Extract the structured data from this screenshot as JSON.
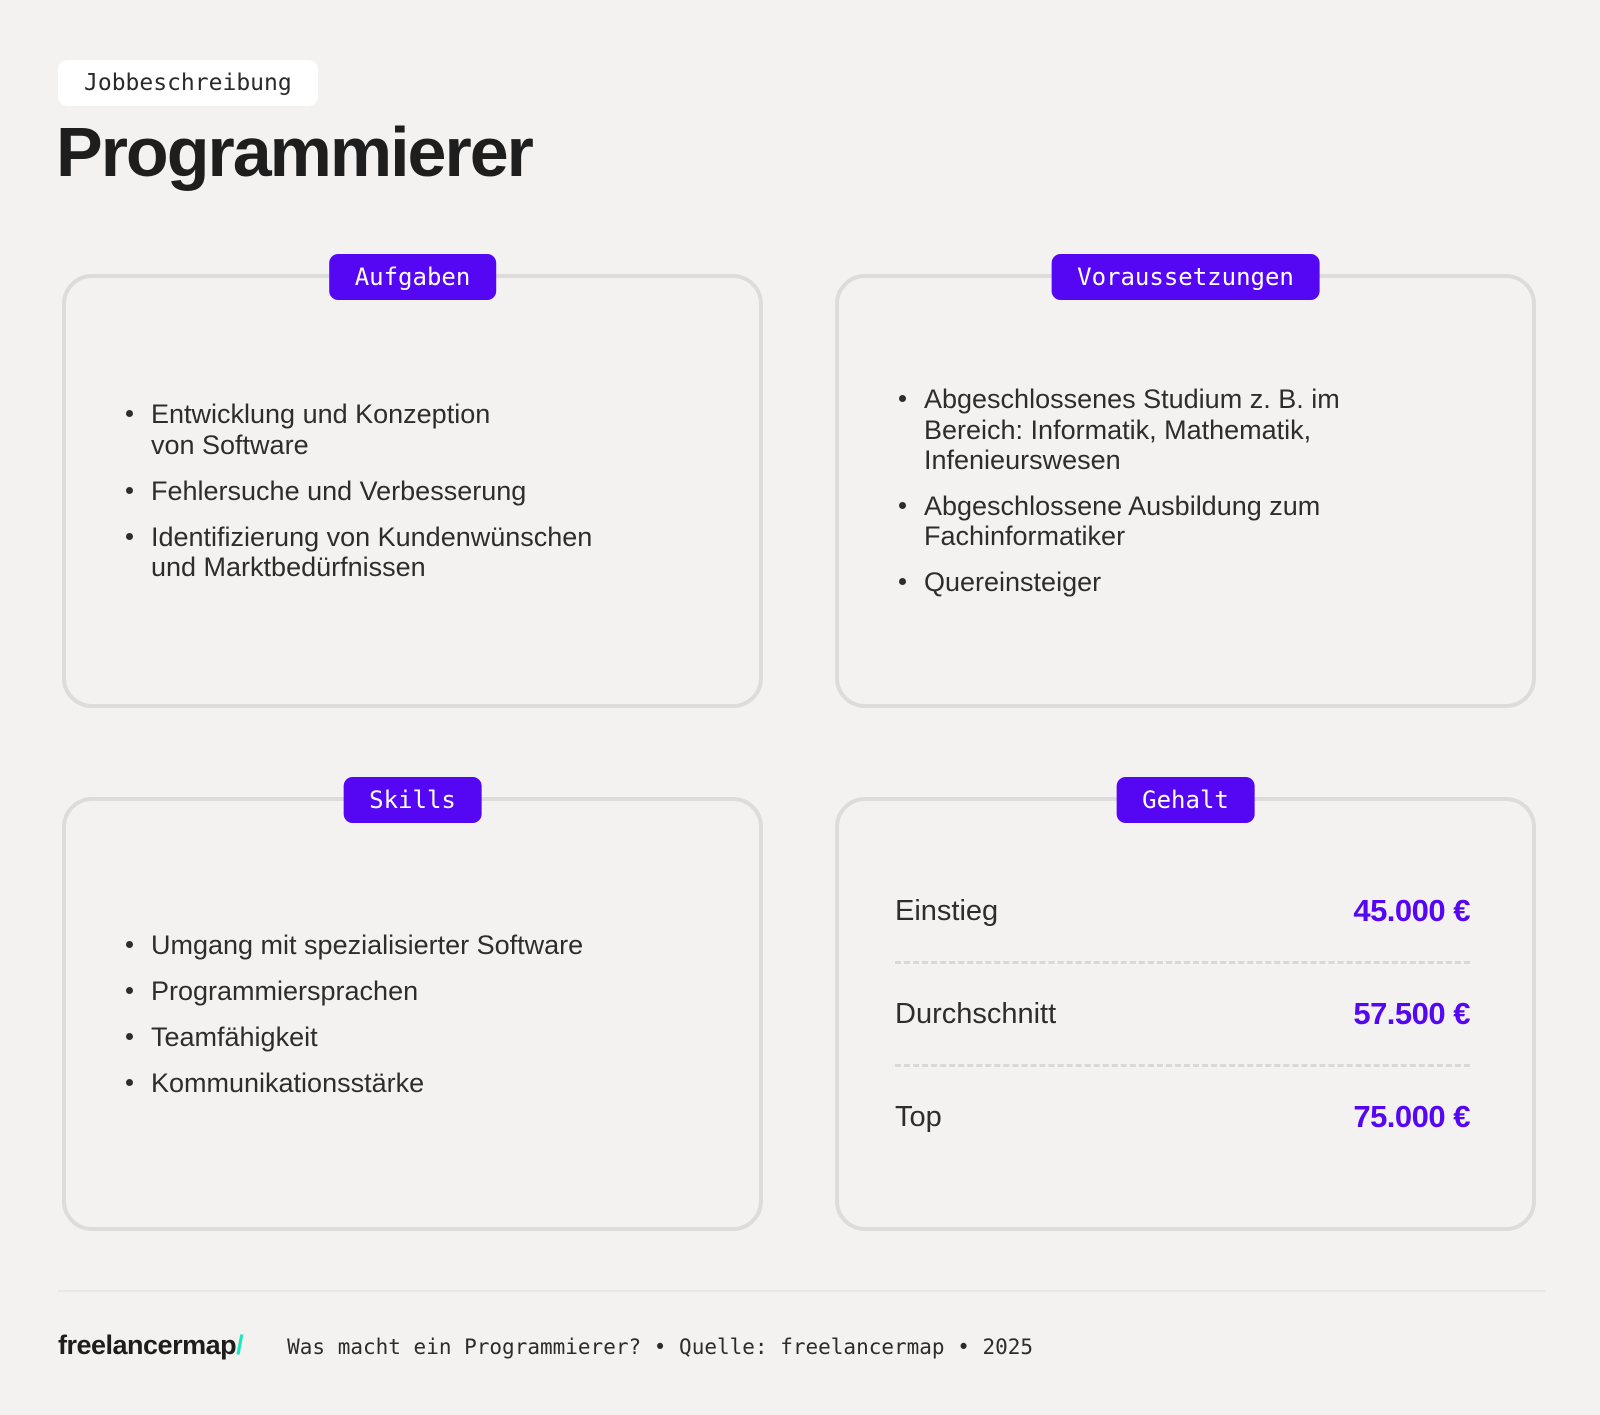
{
  "colors": {
    "accent": "#5506f2",
    "teal": "#1fe5c0",
    "page_bg": "#f3f2f1",
    "card_border": "#dcdcdc",
    "text": "#2d2d2d"
  },
  "header": {
    "tag": "Jobbeschreibung",
    "title": "Programmierer"
  },
  "cards": [
    {
      "badge": "Aufgaben",
      "items": [
        "Entwicklung und Konzeption\nvon Software",
        "Fehlersuche und Verbesserung",
        "Identifizierung von Kundenwünschen\nund Marktbedürfnissen"
      ]
    },
    {
      "badge": "Voraussetzungen",
      "items": [
        "Abgeschlossenes Studium z. B. im\nBereich: Informatik, Mathematik,\nInfenieurswesen",
        "Abgeschlossene Ausbildung zum\nFachinformatiker",
        "Quereinsteiger"
      ]
    },
    {
      "badge": "Skills",
      "items": [
        "Umgang mit spezialisierter Software",
        "Programmiersprachen",
        "Teamfähigkeit",
        "Kommunikationsstärke"
      ]
    }
  ],
  "salary": {
    "badge": "Gehalt",
    "rows": [
      {
        "label": "Einstieg",
        "value": "45.000 €"
      },
      {
        "label": "Durchschnitt",
        "value": "57.500 €"
      },
      {
        "label": "Top",
        "value": "75.000 €"
      }
    ]
  },
  "footer": {
    "logo": "freelancermap",
    "slash": "/",
    "caption": "Was macht ein Programmierer? • Quelle: freelancermap • 2025"
  }
}
